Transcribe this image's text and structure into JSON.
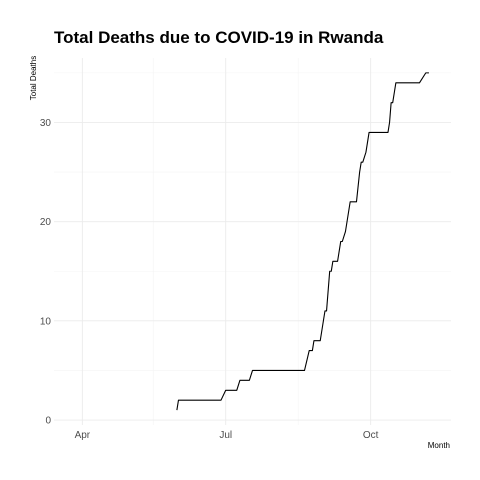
{
  "chart_data": {
    "type": "line",
    "title": "Total Deaths due to COVID-19 in Rwanda",
    "xlabel": "Month",
    "ylabel": "Total Deaths",
    "x_type": "date",
    "xlim": [
      "2020-03-14",
      "2020-11-21"
    ],
    "ylim": [
      -0.5,
      36.5
    ],
    "x_ticks": [
      {
        "date": "2020-04-01",
        "label": "Apr"
      },
      {
        "date": "2020-07-01",
        "label": "Jul"
      },
      {
        "date": "2020-10-01",
        "label": "Oct"
      }
    ],
    "y_ticks": [
      0,
      10,
      20,
      30
    ],
    "grid": true,
    "line_color": "#000000",
    "series": [
      {
        "x": [
          "2020-05-31",
          "2020-06-01",
          "2020-06-04",
          "2020-06-12",
          "2020-06-20",
          "2020-06-25",
          "2020-06-28",
          "2020-07-01",
          "2020-07-05",
          "2020-07-08",
          "2020-07-10",
          "2020-07-13",
          "2020-07-16",
          "2020-07-18",
          "2020-07-22",
          "2020-07-25",
          "2020-07-28",
          "2020-07-31",
          "2020-08-04",
          "2020-08-08",
          "2020-08-12",
          "2020-08-16",
          "2020-08-20",
          "2020-08-23",
          "2020-08-25",
          "2020-08-26",
          "2020-08-28",
          "2020-08-30",
          "2020-09-01",
          "2020-09-02",
          "2020-09-03",
          "2020-09-04",
          "2020-09-05",
          "2020-09-06",
          "2020-09-07",
          "2020-09-09",
          "2020-09-10",
          "2020-09-12",
          "2020-09-13",
          "2020-09-15",
          "2020-09-16",
          "2020-09-18",
          "2020-09-20",
          "2020-09-22",
          "2020-09-24",
          "2020-09-25",
          "2020-09-26",
          "2020-09-28",
          "2020-09-30",
          "2020-10-02",
          "2020-10-06",
          "2020-10-10",
          "2020-10-12",
          "2020-10-13",
          "2020-10-14",
          "2020-10-15",
          "2020-10-16",
          "2020-10-17",
          "2020-10-18",
          "2020-10-22",
          "2020-10-28",
          "2020-11-01",
          "2020-11-05",
          "2020-11-07"
        ],
        "values": [
          1,
          2,
          2,
          2,
          2,
          2,
          2,
          3,
          3,
          3,
          4,
          4,
          4,
          5,
          5,
          5,
          5,
          5,
          5,
          5,
          5,
          5,
          5,
          7,
          7,
          8,
          8,
          8,
          10,
          11,
          11,
          13,
          15,
          15,
          16,
          16,
          16,
          18,
          18,
          19,
          20,
          22,
          22,
          22,
          25,
          26,
          26,
          27,
          29,
          29,
          29,
          29,
          29,
          30,
          32,
          32,
          33,
          34,
          34,
          34,
          34,
          34,
          35,
          35
        ]
      }
    ]
  }
}
